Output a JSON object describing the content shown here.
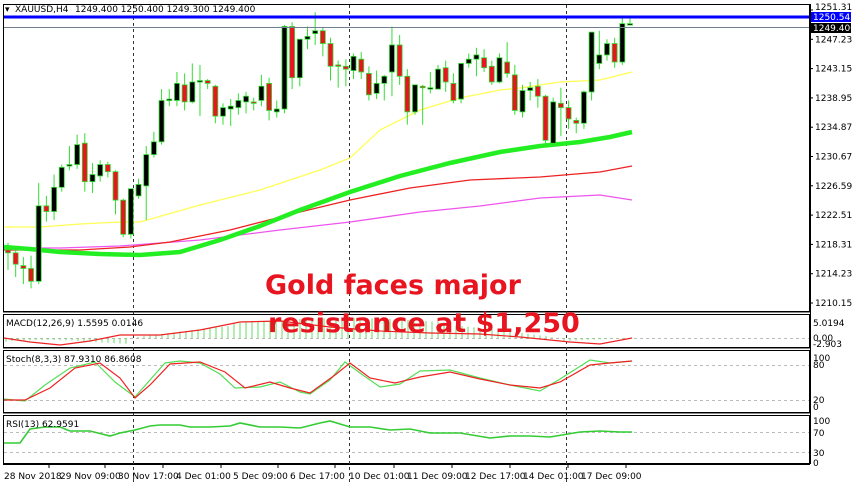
{
  "window": {
    "symbol_title": "XAUUSD,H4",
    "ohlc": "1249.400 1250.400 1249.300 1249.400"
  },
  "colors": {
    "bull_body": "#000000",
    "bear_body": "#e8141f",
    "candle_outline": "#33dd33",
    "ma_yellow": "#ffff55",
    "ma_green": "#22ee22",
    "ma_red": "#ee2222",
    "ma_magenta": "#ee55ee",
    "resistance_line": "#0000ff",
    "bid_line": "#708090",
    "macd_hist": "#66dd66",
    "macd_signal": "#ee2222",
    "stoch_main": "#55dd55",
    "stoch_signal": "#ee2222",
    "rsi_line": "#33cc33",
    "annotation": "#e8141f"
  },
  "annotation": {
    "line1": "Gold faces major",
    "line2": "resistance at $1,250"
  },
  "price_axis": {
    "labels": [
      "1251.310",
      "1247.230",
      "1243.150",
      "1238.950",
      "1234.870",
      "1230.670",
      "1226.590",
      "1222.510",
      "1218.310",
      "1214.230",
      "1210.150"
    ],
    "resistance_tag": "1250.542",
    "bid_tag": "1249.400"
  },
  "macd": {
    "title": "MACD(12,26,9) 1.5595 0.0146",
    "axis": [
      "5.0194",
      "0.00",
      "-2.903"
    ]
  },
  "stoch": {
    "title": "Stoch(8,3,3) 87.9310 86.8608",
    "axis": [
      "100",
      "80",
      "20",
      "0"
    ]
  },
  "rsi": {
    "title": "RSI(13) 62.9591",
    "axis": [
      "100",
      "70",
      "30",
      "0"
    ]
  },
  "time_axis": {
    "labels": [
      "28 Nov 2018",
      "29 Nov 09:00",
      "30 Nov 17:00",
      "4 Dec 01:00",
      "5 Dec 09:00",
      "6 Dec 17:00",
      "10 Dec 01:00",
      "11 Dec 09:00",
      "12 Dec 17:00",
      "14 Dec 01:00",
      "17 Dec 09:00"
    ]
  },
  "chart_data": {
    "type": "candlestick",
    "title": "XAUUSD,H4 1249.400 1250.400 1249.300 1249.400",
    "symbol": "XAUUSD",
    "timeframe": "H4",
    "ylim": [
      1210.15,
      1251.31
    ],
    "x_tick_labels": [
      "28 Nov 2018",
      "29 Nov 09:00",
      "30 Nov 17:00",
      "4 Dec 01:00",
      "5 Dec 09:00",
      "6 Dec 17:00",
      "10 Dec 01:00",
      "11 Dec 09:00",
      "12 Dec 17:00",
      "14 Dec 01:00",
      "17 Dec 09:00"
    ],
    "y_tick_labels": [
      1251.31,
      1247.23,
      1243.15,
      1238.95,
      1234.87,
      1230.67,
      1226.59,
      1222.51,
      1218.31,
      1214.23,
      1210.15
    ],
    "resistance_level": 1250.542,
    "last_price": 1249.4,
    "candles": [
      [
        1217.6,
        1218.6,
        1214.8,
        1217.2
      ],
      [
        1217.2,
        1218.0,
        1213.8,
        1215.6
      ],
      [
        1215.4,
        1216.6,
        1212.8,
        1215.0
      ],
      [
        1215.0,
        1216.8,
        1212.2,
        1213.2
      ],
      [
        1213.2,
        1227.0,
        1212.8,
        1223.8
      ],
      [
        1223.8,
        1225.2,
        1221.6,
        1223.0
      ],
      [
        1223.0,
        1228.2,
        1221.8,
        1226.4
      ],
      [
        1226.4,
        1229.6,
        1225.8,
        1229.2
      ],
      [
        1229.4,
        1232.2,
        1228.8,
        1229.6
      ],
      [
        1229.6,
        1233.8,
        1229.0,
        1232.4
      ],
      [
        1232.6,
        1234.0,
        1225.8,
        1227.2
      ],
      [
        1227.2,
        1229.8,
        1225.6,
        1228.2
      ],
      [
        1228.0,
        1230.2,
        1227.2,
        1229.6
      ],
      [
        1229.6,
        1230.0,
        1227.8,
        1228.6
      ],
      [
        1228.6,
        1228.8,
        1222.6,
        1224.6
      ],
      [
        1224.6,
        1224.8,
        1219.4,
        1219.8
      ],
      [
        1219.8,
        1226.2,
        1219.2,
        1226.2
      ],
      [
        1225.2,
        1227.6,
        1224.8,
        1226.8
      ],
      [
        1226.6,
        1232.2,
        1221.8,
        1231.0
      ],
      [
        1231.0,
        1234.2,
        1230.6,
        1232.8
      ],
      [
        1232.8,
        1240.2,
        1232.4,
        1238.6
      ],
      [
        1238.6,
        1240.2,
        1237.8,
        1238.8
      ],
      [
        1238.6,
        1242.6,
        1237.8,
        1241.0
      ],
      [
        1240.8,
        1242.4,
        1237.2,
        1238.4
      ],
      [
        1238.4,
        1243.8,
        1238.2,
        1241.2
      ],
      [
        1241.2,
        1243.6,
        1236.4,
        1241.4
      ],
      [
        1241.4,
        1241.6,
        1240.2,
        1241.0
      ],
      [
        1240.6,
        1240.8,
        1235.4,
        1236.4
      ],
      [
        1236.4,
        1238.2,
        1235.2,
        1237.6
      ],
      [
        1237.4,
        1238.8,
        1235.0,
        1237.8
      ],
      [
        1237.6,
        1239.6,
        1236.6,
        1238.6
      ],
      [
        1238.4,
        1239.8,
        1236.8,
        1239.2
      ],
      [
        1238.4,
        1239.0,
        1237.2,
        1238.2
      ],
      [
        1238.6,
        1242.2,
        1237.8,
        1240.6
      ],
      [
        1241.0,
        1241.8,
        1235.8,
        1237.2
      ],
      [
        1237.0,
        1238.6,
        1236.2,
        1237.4
      ],
      [
        1237.4,
        1249.2,
        1236.8,
        1249.0
      ],
      [
        1249.0,
        1249.6,
        1240.2,
        1241.8
      ],
      [
        1241.8,
        1243.6,
        1240.6,
        1247.2
      ],
      [
        1247.2,
        1249.0,
        1245.8,
        1247.6
      ],
      [
        1248.0,
        1251.0,
        1246.4,
        1248.4
      ],
      [
        1248.4,
        1248.8,
        1244.8,
        1246.6
      ],
      [
        1246.6,
        1247.4,
        1241.4,
        1243.4
      ],
      [
        1243.6,
        1244.2,
        1240.4,
        1243.4
      ],
      [
        1243.4,
        1244.4,
        1240.6,
        1243.0
      ],
      [
        1242.8,
        1245.2,
        1241.6,
        1244.8
      ],
      [
        1244.4,
        1245.4,
        1241.6,
        1242.6
      ],
      [
        1242.4,
        1243.4,
        1238.6,
        1239.4
      ],
      [
        1239.6,
        1242.8,
        1238.8,
        1241.0
      ],
      [
        1241.0,
        1242.2,
        1238.6,
        1242.0
      ],
      [
        1242.6,
        1249.0,
        1239.2,
        1246.4
      ],
      [
        1246.4,
        1247.8,
        1240.8,
        1242.0
      ],
      [
        1242.0,
        1243.0,
        1235.2,
        1237.0
      ],
      [
        1237.0,
        1238.2,
        1236.6,
        1240.8
      ],
      [
        1240.6,
        1240.8,
        1235.2,
        1240.4
      ],
      [
        1240.4,
        1242.6,
        1239.6,
        1240.4
      ],
      [
        1240.2,
        1243.6,
        1240.2,
        1243.0
      ],
      [
        1243.2,
        1244.2,
        1239.8,
        1241.2
      ],
      [
        1241.0,
        1242.4,
        1238.2,
        1238.6
      ],
      [
        1238.8,
        1243.8,
        1238.2,
        1243.8
      ],
      [
        1243.8,
        1245.2,
        1243.2,
        1244.4
      ],
      [
        1244.4,
        1246.0,
        1242.0,
        1245.0
      ],
      [
        1244.6,
        1245.8,
        1242.6,
        1243.2
      ],
      [
        1243.4,
        1244.2,
        1240.8,
        1241.2
      ],
      [
        1241.2,
        1245.2,
        1241.0,
        1244.6
      ],
      [
        1244.0,
        1246.8,
        1241.8,
        1242.4
      ],
      [
        1242.2,
        1243.6,
        1236.6,
        1237.2
      ],
      [
        1237.0,
        1240.8,
        1236.2,
        1240.0
      ],
      [
        1240.0,
        1241.2,
        1238.6,
        1240.4
      ],
      [
        1240.6,
        1241.6,
        1237.6,
        1239.2
      ],
      [
        1239.2,
        1239.4,
        1232.2,
        1233.0
      ],
      [
        1232.6,
        1239.0,
        1232.2,
        1238.4
      ],
      [
        1238.2,
        1240.4,
        1233.6,
        1237.6
      ],
      [
        1237.6,
        1238.6,
        1234.6,
        1236.0
      ],
      [
        1235.8,
        1236.2,
        1234.0,
        1235.4
      ],
      [
        1235.4,
        1240.0,
        1234.6,
        1239.8
      ],
      [
        1239.8,
        1244.6,
        1238.6,
        1248.2
      ],
      [
        1243.8,
        1248.4,
        1243.0,
        1245.0
      ],
      [
        1245.0,
        1247.2,
        1244.2,
        1246.6
      ],
      [
        1246.6,
        1247.4,
        1243.2,
        1244.0
      ],
      [
        1244.0,
        1250.2,
        1243.6,
        1249.4
      ],
      [
        1249.4,
        1250.4,
        1249.3,
        1249.4
      ]
    ],
    "series": [
      {
        "name": "MA yellow (fast)",
        "color": "#ffff55",
        "values_approx": [
          1221.7,
          1221.7,
          1222.2,
          1223.0,
          1222.9,
          1223.6,
          1226.5,
          1230.0,
          1235.0,
          1238.5,
          1240.2,
          1241.0,
          1241.2,
          1240.8,
          1241.0,
          1241.6,
          1241.8,
          1242.2,
          1243.4
        ]
      },
      {
        "name": "MA green (thick)",
        "color": "#22ee22",
        "values_approx": [
          1219.2,
          1218.6,
          1218.4,
          1217.9,
          1218.0,
          1219.0,
          1220.6,
          1223.0,
          1225.6,
          1227.8,
          1229.4,
          1231.2,
          1232.6,
          1233.2,
          1234.6
        ]
      },
      {
        "name": "MA red",
        "color": "#ee2222",
        "values_approx": [
          1218.6,
          1218.6,
          1218.9,
          1219.6,
          1220.4,
          1221.4,
          1222.6,
          1223.8,
          1225.0,
          1226.2,
          1227.4,
          1228.2,
          1229.6
        ]
      },
      {
        "name": "MA magenta",
        "color": "#ee55ee",
        "values_approx": [
          1219.0,
          1219.0,
          1219.2,
          1219.6,
          1220.0,
          1220.6,
          1221.4,
          1222.0,
          1222.6,
          1223.2,
          1223.8,
          1224.4,
          1225.0
        ]
      }
    ],
    "indicators": [
      {
        "name": "MACD(12,26,9)",
        "main": 1.5595,
        "signal": 0.0146,
        "ylim": [
          -2.903,
          5.0194
        ]
      },
      {
        "name": "Stoch(8,3,3)",
        "k": 87.931,
        "d": 86.8608,
        "levels": [
          20,
          80
        ],
        "ylim": [
          0,
          100
        ]
      },
      {
        "name": "RSI(13)",
        "value": 62.9591,
        "levels": [
          30,
          70
        ],
        "ylim": [
          0,
          100
        ]
      }
    ],
    "annotations": [
      "Gold faces major",
      "resistance at $1,250"
    ]
  }
}
